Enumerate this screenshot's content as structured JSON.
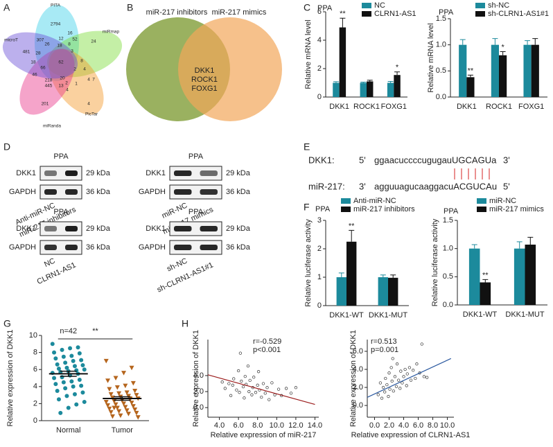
{
  "figure": {
    "panel_labels": [
      "A",
      "B",
      "C",
      "D",
      "E",
      "F",
      "G",
      "H"
    ],
    "venn_five": {
      "sets": [
        "PITA",
        "miRmap",
        "PicTar",
        "miRanda",
        "microT"
      ],
      "regions": [
        2794,
        16,
        12,
        52,
        24,
        307,
        26,
        18,
        8,
        3,
        481,
        28,
        18,
        62,
        8,
        4,
        2,
        4,
        46,
        66,
        218,
        20,
        2,
        445,
        13,
        4,
        201,
        7,
        4,
        1
      ]
    },
    "venn_two": {
      "sets": [
        "miR-217 inhibitors",
        "miR-217 mimics"
      ],
      "overlap": [
        "DKK1",
        "ROCK1",
        "FOXG1"
      ]
    },
    "western_blots": [
      {
        "title": "PPA",
        "rows": [
          {
            "protein": "DKK1",
            "size": "29 kDa"
          },
          {
            "protein": "GAPDH",
            "size": "36 kDa"
          }
        ],
        "lanes": [
          "Anti-miR-NC",
          "miR-217 inhibitors"
        ]
      },
      {
        "title": "PPA",
        "rows": [
          {
            "protein": "DKK1",
            "size": "29 kDa"
          },
          {
            "protein": "GAPDH",
            "size": "36 kDa"
          }
        ],
        "lanes": [
          "miR-NC",
          "miR-217 mimics"
        ]
      },
      {
        "title": "PPA",
        "rows": [
          {
            "protein": "DKK1",
            "size": "29 kDa"
          },
          {
            "protein": "GAPDH",
            "size": "36 kDa"
          }
        ],
        "lanes": [
          "NC",
          "CLRN1-AS1"
        ]
      },
      {
        "title": "PPA",
        "rows": [
          {
            "protein": "DKK1",
            "size": "29 kDa"
          },
          {
            "protein": "GAPDH",
            "size": "36 kDa"
          }
        ],
        "lanes": [
          "sh-NC",
          "sh-CLRN1-AS1#1"
        ]
      }
    ],
    "sequences": [
      {
        "name": "DKK1:",
        "left": "5'",
        "seq": "ggaacuccccugugauUGCAGUa",
        "right": "3'"
      },
      {
        "name": "miR-217:",
        "left": "3'",
        "seq": "agguuagucaaggacuACGUCAu",
        "right": "5'"
      }
    ]
  },
  "chart_data": [
    {
      "type": "bar",
      "title": "PPA",
      "ylabel": "Relative mRNA level",
      "categories": [
        "DKK1",
        "ROCK1",
        "FOXG1"
      ],
      "ylim": [
        0,
        6
      ],
      "yticks": [
        0,
        2,
        4,
        6
      ],
      "series": [
        {
          "name": "NC",
          "color": "#1c8a9c",
          "values": [
            1,
            1,
            1
          ],
          "errors": [
            0.08,
            0.05,
            0.1
          ],
          "sig": [
            null,
            null,
            null
          ]
        },
        {
          "name": "CLRN1-AS1",
          "color": "#111111",
          "values": [
            4.9,
            1.1,
            1.55
          ],
          "errors": [
            0.65,
            0.08,
            0.22
          ],
          "sig": [
            "**",
            null,
            "*"
          ]
        }
      ]
    },
    {
      "type": "bar",
      "title": "PPA",
      "ylabel": "Relative mRNA level",
      "categories": [
        "DKK1",
        "ROCK1",
        "FOXG1"
      ],
      "ylim": [
        0,
        1.5
      ],
      "yticks": [
        {
          "value": 0,
          "label": "0.0"
        },
        {
          "value": 0.5,
          "label": "0.5"
        },
        {
          "value": 1,
          "label": "1.0"
        },
        {
          "value": 1.5,
          "label": "1.5"
        }
      ],
      "series": [
        {
          "name": "sh-NC",
          "color": "#1c8a9c",
          "values": [
            1,
            1,
            1
          ],
          "errors": [
            0.1,
            0.12,
            0.08
          ],
          "sig": [
            null,
            null,
            null
          ]
        },
        {
          "name": "sh-CLRN1-AS1#1",
          "color": "#111111",
          "values": [
            0.38,
            0.8,
            1.0
          ],
          "errors": [
            0.04,
            0.07,
            0.12
          ],
          "sig": [
            "**",
            "*",
            null
          ]
        }
      ]
    },
    {
      "type": "bar",
      "title": "PPA",
      "ylabel": "Relative luciferase activity",
      "categories": [
        "DKK1-WT",
        "DKK1-MUT"
      ],
      "ylim": [
        0,
        3
      ],
      "yticks": [
        0,
        1,
        2,
        3
      ],
      "series": [
        {
          "name": "Anti-miR-NC",
          "color": "#1c8a9c",
          "values": [
            1,
            1
          ],
          "errors": [
            0.15,
            0.08
          ],
          "sig": [
            null,
            null
          ]
        },
        {
          "name": "miR-217 inhibitors",
          "color": "#111111",
          "values": [
            2.25,
            0.98
          ],
          "errors": [
            0.4,
            0.1
          ],
          "sig": [
            "**",
            null
          ]
        }
      ]
    },
    {
      "type": "bar",
      "title": "PPA",
      "ylabel": "Relative luciferase activity",
      "categories": [
        "DKK1-WT",
        "DKK1-MUT"
      ],
      "ylim": [
        0,
        1.5
      ],
      "yticks": [
        {
          "value": 0,
          "label": "0.0"
        },
        {
          "value": 0.5,
          "label": "0.5"
        },
        {
          "value": 1,
          "label": "1.0"
        },
        {
          "value": 1.5,
          "label": "1.5"
        }
      ],
      "series": [
        {
          "name": "miR-NC",
          "color": "#1c8a9c",
          "values": [
            1,
            1
          ],
          "errors": [
            0.07,
            0.12
          ],
          "sig": [
            null,
            null
          ]
        },
        {
          "name": "miR-217 mimics",
          "color": "#111111",
          "values": [
            0.4,
            1.07
          ],
          "errors": [
            0.05,
            0.13
          ],
          "sig": [
            "**",
            null
          ]
        }
      ]
    },
    {
      "type": "dot",
      "ylabel": "Relative expression of DKK1",
      "categories": [
        "Normal",
        "Tumor"
      ],
      "ylim": [
        0,
        10
      ],
      "yticks": [
        0,
        2,
        4,
        6,
        8,
        10
      ],
      "annotations": [
        "n=42",
        "**"
      ],
      "groups": [
        {
          "color": "#1c8a9c",
          "marker": "circle",
          "mean": 5.5,
          "sem": 0.3,
          "values": [
            9.0,
            8.6,
            8.5,
            8.3,
            8.0,
            7.9,
            7.6,
            7.5,
            7.3,
            7.1,
            7.0,
            6.8,
            6.6,
            6.5,
            6.4,
            6.2,
            6.1,
            6.0,
            5.9,
            5.8,
            5.7,
            5.6,
            5.5,
            5.3,
            5.1,
            5.0,
            4.8,
            4.6,
            4.5,
            4.3,
            4.1,
            4.0,
            3.8,
            3.5,
            3.3,
            3.1,
            2.9,
            2.5,
            2.2,
            1.9,
            1.5,
            0.9
          ]
        },
        {
          "color": "#b5651d",
          "marker": "triangle",
          "mean": 2.6,
          "sem": 0.2,
          "values": [
            7.0,
            6.2,
            5.6,
            5.0,
            4.7,
            4.4,
            4.1,
            3.9,
            3.7,
            3.5,
            3.3,
            3.2,
            3.1,
            3.0,
            2.9,
            2.8,
            2.7,
            2.6,
            2.5,
            2.4,
            2.3,
            2.2,
            2.1,
            2.0,
            1.9,
            1.8,
            1.7,
            1.6,
            1.5,
            1.4,
            1.3,
            1.2,
            1.1,
            1.0,
            0.9,
            0.8,
            0.6,
            0.5,
            0.4,
            2.6,
            2.4,
            1.5
          ]
        }
      ]
    },
    {
      "type": "scatter",
      "xlabel": "Relative expression of miR-217",
      "ylabel": "Relative expression of DKK1",
      "annotations": [
        "r=-0.529",
        "p<0.001"
      ],
      "color": "#9b1c1c",
      "xlim": [
        2.8,
        14.4
      ],
      "xticks": [
        {
          "value": 4,
          "label": "4.0"
        },
        {
          "value": 6,
          "label": "6.0"
        },
        {
          "value": 8,
          "label": "8.0"
        },
        {
          "value": 10,
          "label": "10.0"
        },
        {
          "value": 12,
          "label": "12.0"
        },
        {
          "value": 14,
          "label": "14.0"
        }
      ],
      "ylim": [
        -1.2,
        8.5
      ],
      "yticks": [
        {
          "value": 0,
          "label": "0.0"
        },
        {
          "value": 2,
          "label": "2.0"
        },
        {
          "value": 4,
          "label": "4.0"
        }
      ],
      "x": [
        4.3,
        4.6,
        5.0,
        5.2,
        5.4,
        5.5,
        5.8,
        6.0,
        6.1,
        6.2,
        6.3,
        6.5,
        6.6,
        6.7,
        6.8,
        7.0,
        7.1,
        7.2,
        7.4,
        7.5,
        7.6,
        7.8,
        8.0,
        8.1,
        8.2,
        8.4,
        8.6,
        8.8,
        9.0,
        9.2,
        9.5,
        9.8,
        10.2,
        10.5,
        11.0,
        11.5,
        12.0
      ],
      "y": [
        3.2,
        2.4,
        3.0,
        1.5,
        2.8,
        3.6,
        2.2,
        4.6,
        1.9,
        6.8,
        3.3,
        2.6,
        1.2,
        3.9,
        2.9,
        5.2,
        2.0,
        3.4,
        1.6,
        2.5,
        3.8,
        1.9,
        2.8,
        4.5,
        2.2,
        1.3,
        3.0,
        1.8,
        2.5,
        1.0,
        3.1,
        1.6,
        2.3,
        1.5,
        2.4,
        1.8,
        2.5
      ],
      "fit": {
        "x": [
          2.8,
          14.0
        ],
        "y": [
          4.1,
          0.4
        ]
      }
    },
    {
      "type": "scatter",
      "xlabel": "Relative expression of CLRN1-AS1",
      "ylabel": "Relative expression of DKK1",
      "annotations": [
        "r=0.513",
        "p=0.001"
      ],
      "color": "#2c5aa0",
      "xlim": [
        -1.0,
        10.9
      ],
      "xticks": [
        {
          "value": 0,
          "label": "0.0"
        },
        {
          "value": 2,
          "label": "2.0"
        },
        {
          "value": 4,
          "label": "4.0"
        },
        {
          "value": 6,
          "label": "6.0"
        },
        {
          "value": 8,
          "label": "8.0"
        },
        {
          "value": 10,
          "label": "10.0"
        }
      ],
      "ylim": [
        -1.3,
        7.3
      ],
      "yticks": [
        {
          "value": 0,
          "label": "0.0"
        },
        {
          "value": 2,
          "label": "2.0"
        },
        {
          "value": 4,
          "label": "4.0"
        },
        {
          "value": 6,
          "label": "6.0"
        }
      ],
      "x": [
        0.5,
        0.8,
        1.0,
        1.2,
        1.4,
        1.5,
        1.7,
        1.9,
        2.0,
        2.1,
        2.3,
        2.4,
        2.5,
        2.6,
        2.8,
        3.0,
        3.1,
        3.3,
        3.5,
        3.6,
        3.8,
        4.0,
        4.2,
        4.4,
        4.5,
        4.8,
        5.0,
        5.3,
        5.6,
        5.8,
        6.2,
        6.5,
        6.8,
        7.2
      ],
      "y": [
        1.2,
        2.5,
        0.8,
        2.0,
        1.5,
        3.0,
        2.3,
        1.0,
        3.6,
        1.8,
        4.2,
        2.7,
        5.2,
        1.6,
        3.2,
        2.1,
        4.6,
        2.8,
        1.9,
        3.8,
        2.5,
        3.2,
        4.0,
        2.2,
        3.5,
        4.2,
        2.8,
        3.9,
        3.0,
        4.6,
        3.6,
        6.8,
        3.2,
        3.1
      ],
      "fit": {
        "x": [
          -1.0,
          10.5
        ],
        "y": [
          0.9,
          5.2
        ]
      }
    }
  ]
}
